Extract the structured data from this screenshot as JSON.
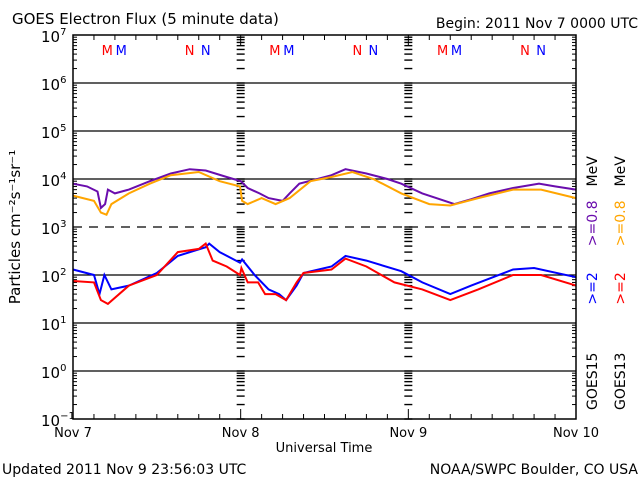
{
  "header": {
    "title": "GOES Electron Flux (5 minute data)",
    "begin": "Begin: 2011 Nov 7 0000 UTC"
  },
  "footer": {
    "updated": "Updated 2011 Nov  9 23:56:03 UTC",
    "credit": "NOAA/SWPC Boulder, CO USA"
  },
  "chart_data": {
    "type": "line",
    "title": "GOES Electron Flux (5 minute data)",
    "xlabel": "Universal Time",
    "ylabel": "Particles cm⁻²s⁻¹sr⁻¹",
    "x_unit": "hours since 2011 Nov 7 0000 UTC",
    "xlim": [
      0,
      72
    ],
    "yscale": "log",
    "ylim": [
      0.1,
      10000000
    ],
    "x_ticks": [
      {
        "h": 0,
        "label": "Nov 7"
      },
      {
        "h": 24,
        "label": "Nov 8"
      },
      {
        "h": 48,
        "label": "Nov 9"
      },
      {
        "h": 72,
        "label": "Nov 10"
      }
    ],
    "y_ticks": [
      {
        "exp": 7,
        "label": "7"
      },
      {
        "exp": 6,
        "label": "6"
      },
      {
        "exp": 5,
        "label": "5"
      },
      {
        "exp": 4,
        "label": "4"
      },
      {
        "exp": 3,
        "label": "3"
      },
      {
        "exp": 2,
        "label": "2"
      },
      {
        "exp": 1,
        "label": "1"
      },
      {
        "exp": 0,
        "label": "0"
      },
      {
        "exp": -1,
        "label": "−1"
      }
    ],
    "y_tick_base": "10",
    "threshold": 1000,
    "grid": true,
    "markers": [
      {
        "label": "M",
        "color": "#ff0000",
        "h": [
          4.9,
          28.9,
          52.9
        ]
      },
      {
        "label": "M",
        "color": "#0000ff",
        "h": [
          6.9,
          30.9,
          54.9
        ]
      },
      {
        "label": "N",
        "color": "#ff0000",
        "h": [
          16.7,
          40.7,
          64.7
        ]
      },
      {
        "label": "N",
        "color": "#0000ff",
        "h": [
          19,
          43,
          67
        ]
      }
    ],
    "legend": [
      {
        "sat": "GOES15",
        "items": [
          {
            "label": ">=2",
            "color": "#0000ff"
          },
          {
            "label": ">=0.8",
            "color": "#6a0dad"
          },
          {
            "label": "MeV",
            "color": "#000000"
          }
        ]
      },
      {
        "sat": "GOES13",
        "items": [
          {
            "label": ">=2",
            "color": "#ff0000"
          },
          {
            "label": ">=0.8",
            "color": "#ffa500"
          },
          {
            "label": "MeV",
            "color": "#000000"
          }
        ]
      }
    ],
    "series": [
      {
        "name": "GOES15 >=0.8 MeV",
        "color": "#6a0dad",
        "x": [
          0,
          2,
          3.5,
          4,
          4.6,
          5,
          6,
          8,
          11,
          14,
          16.7,
          19,
          22,
          24,
          25,
          26.7,
          28,
          30,
          31,
          32.4,
          35,
          37,
          39,
          42,
          45,
          47,
          50,
          52,
          54.6,
          57,
          59.6,
          63,
          66.7,
          69,
          72
        ],
        "y": [
          8000,
          7000,
          5500,
          2500,
          3000,
          6000,
          5000,
          6000,
          9000,
          13000,
          16000,
          15000,
          11000,
          9000,
          6500,
          5000,
          4000,
          3500,
          5000,
          8000,
          10000,
          12000,
          16000,
          13000,
          10000,
          8000,
          5000,
          4000,
          3000,
          3800,
          5000,
          6500,
          8000,
          7000,
          6000
        ]
      },
      {
        "name": "GOES13 >=0.8 MeV",
        "color": "#ffa500",
        "x": [
          0,
          3,
          4,
          4.8,
          5.5,
          8,
          11,
          14,
          18,
          21,
          23.9,
          24.2,
          25,
          27,
          29,
          31,
          34,
          37,
          40,
          43,
          47,
          51,
          54,
          58,
          63,
          67,
          72
        ],
        "y": [
          4500,
          3500,
          2000,
          1800,
          3000,
          5000,
          8000,
          12000,
          14000,
          9000,
          7000,
          3500,
          3000,
          4000,
          3000,
          4000,
          9000,
          11000,
          14000,
          10000,
          5000,
          3000,
          2800,
          4000,
          6000,
          6000,
          4000
        ]
      },
      {
        "name": "GOES15 >=2 MeV",
        "color": "#0000ff",
        "x": [
          0,
          3,
          3.8,
          4.5,
          5.5,
          8,
          12,
          15,
          19,
          19.5,
          21,
          23.9,
          24.2,
          26,
          28,
          29.5,
          30.5,
          32,
          33,
          37,
          39,
          42,
          47,
          50,
          54,
          57,
          63,
          66,
          72
        ],
        "y": [
          130,
          100,
          40,
          100,
          50,
          60,
          110,
          250,
          380,
          450,
          300,
          180,
          210,
          100,
          50,
          40,
          30,
          60,
          110,
          150,
          250,
          200,
          120,
          70,
          40,
          60,
          130,
          140,
          90
        ]
      },
      {
        "name": "GOES13 >=2 MeV",
        "color": "#ff0000",
        "x": [
          0,
          3,
          4,
          5,
          8,
          12,
          15,
          18,
          19,
          20,
          22,
          23.9,
          24.1,
          25,
          26.5,
          27.5,
          29,
          30.5,
          32,
          33,
          37,
          39,
          42,
          46,
          50,
          54,
          58,
          63,
          67,
          72
        ],
        "y": [
          75,
          70,
          30,
          25,
          60,
          100,
          300,
          350,
          450,
          200,
          150,
          100,
          140,
          70,
          70,
          40,
          40,
          30,
          70,
          110,
          130,
          220,
          150,
          70,
          50,
          30,
          50,
          100,
          100,
          60
        ]
      }
    ]
  }
}
